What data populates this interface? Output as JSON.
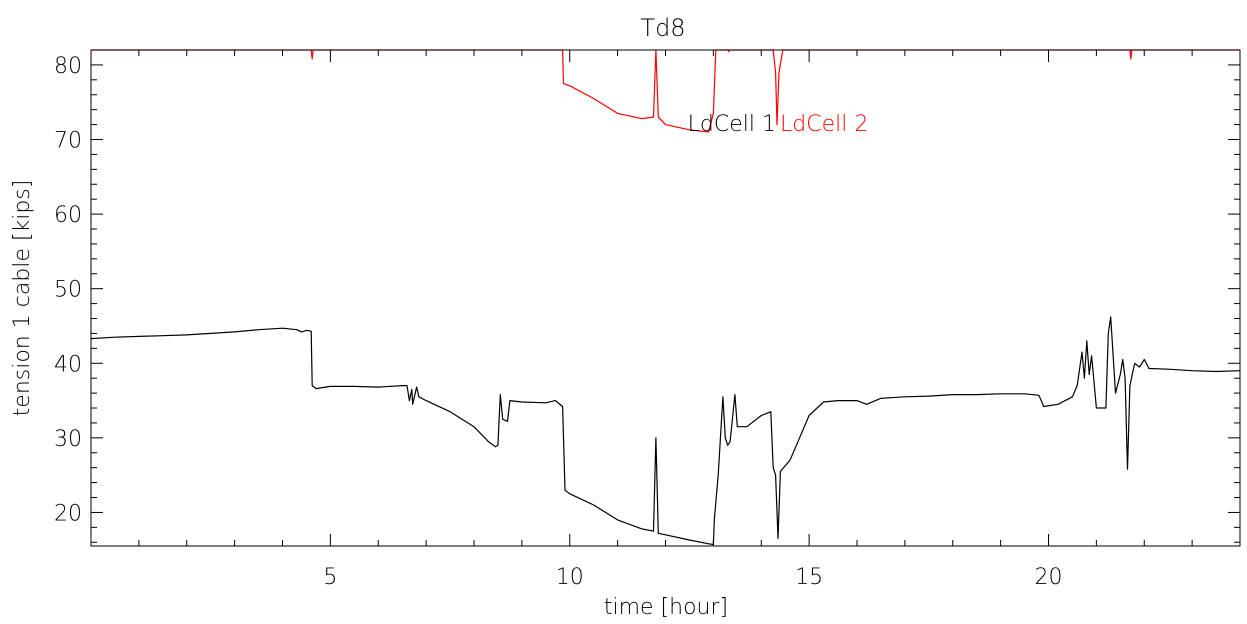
{
  "chart_data": {
    "type": "line",
    "title": "Td8",
    "xlabel": "time [hour]",
    "ylabel": "tension 1 cable [kips]",
    "xlim": [
      0,
      24
    ],
    "ylim": [
      15.5,
      82
    ],
    "x_ticks": [
      5,
      10,
      15,
      20
    ],
    "y_ticks": [
      20,
      30,
      40,
      50,
      60,
      70,
      80
    ],
    "x_tick_labels": [
      "5",
      "10",
      "15",
      "20"
    ],
    "y_tick_labels": [
      "20",
      "30",
      "40",
      "50",
      "60",
      "70",
      "80"
    ],
    "grid": false,
    "legend_placement": "top-center",
    "series": [
      {
        "name": "LdCell 1",
        "color": "#000000",
        "points": [
          [
            0.0,
            43.3
          ],
          [
            0.5,
            43.5
          ],
          [
            1.0,
            43.6
          ],
          [
            1.5,
            43.7
          ],
          [
            2.0,
            43.8
          ],
          [
            2.5,
            44.0
          ],
          [
            3.0,
            44.2
          ],
          [
            3.5,
            44.5
          ],
          [
            4.0,
            44.7
          ],
          [
            4.3,
            44.5
          ],
          [
            4.4,
            44.2
          ],
          [
            4.5,
            44.4
          ],
          [
            4.6,
            44.3
          ],
          [
            4.62,
            37.0
          ],
          [
            4.7,
            36.6
          ],
          [
            5.0,
            36.9
          ],
          [
            5.5,
            36.9
          ],
          [
            6.0,
            36.8
          ],
          [
            6.5,
            37.0
          ],
          [
            6.6,
            37.0
          ],
          [
            6.65,
            35.0
          ],
          [
            6.7,
            36.5
          ],
          [
            6.72,
            34.5
          ],
          [
            6.8,
            36.8
          ],
          [
            6.85,
            35.5
          ],
          [
            7.0,
            35.0
          ],
          [
            7.5,
            33.5
          ],
          [
            8.0,
            31.5
          ],
          [
            8.3,
            29.5
          ],
          [
            8.45,
            28.8
          ],
          [
            8.5,
            29.0
          ],
          [
            8.55,
            35.8
          ],
          [
            8.6,
            32.5
          ],
          [
            8.7,
            32.2
          ],
          [
            8.75,
            35.0
          ],
          [
            9.0,
            34.8
          ],
          [
            9.5,
            34.7
          ],
          [
            9.7,
            35.0
          ],
          [
            9.85,
            34.2
          ],
          [
            9.9,
            23.0
          ],
          [
            10.0,
            22.5
          ],
          [
            10.5,
            21.0
          ],
          [
            11.0,
            19.0
          ],
          [
            11.5,
            17.8
          ],
          [
            11.75,
            17.5
          ],
          [
            11.8,
            30.0
          ],
          [
            11.85,
            17.2
          ],
          [
            12.0,
            17.0
          ],
          [
            12.5,
            16.3
          ],
          [
            12.9,
            15.8
          ],
          [
            13.0,
            15.7
          ],
          [
            13.02,
            19.0
          ],
          [
            13.1,
            25.0
          ],
          [
            13.2,
            35.5
          ],
          [
            13.25,
            30.0
          ],
          [
            13.3,
            29.0
          ],
          [
            13.35,
            29.5
          ],
          [
            13.45,
            35.8
          ],
          [
            13.5,
            31.5
          ],
          [
            13.7,
            31.5
          ],
          [
            14.0,
            33.0
          ],
          [
            14.2,
            33.5
          ],
          [
            14.25,
            26.0
          ],
          [
            14.3,
            25.0
          ],
          [
            14.35,
            16.5
          ],
          [
            14.4,
            25.5
          ],
          [
            14.6,
            27.0
          ],
          [
            14.8,
            30.0
          ],
          [
            15.0,
            33.0
          ],
          [
            15.3,
            34.8
          ],
          [
            15.6,
            35.0
          ],
          [
            16.0,
            35.0
          ],
          [
            16.2,
            34.5
          ],
          [
            16.5,
            35.3
          ],
          [
            17.0,
            35.5
          ],
          [
            17.5,
            35.6
          ],
          [
            18.0,
            35.8
          ],
          [
            18.5,
            35.8
          ],
          [
            19.0,
            35.9
          ],
          [
            19.5,
            35.9
          ],
          [
            19.8,
            35.7
          ],
          [
            19.9,
            34.2
          ],
          [
            20.2,
            34.5
          ],
          [
            20.5,
            35.5
          ],
          [
            20.6,
            37.0
          ],
          [
            20.7,
            41.5
          ],
          [
            20.75,
            38.0
          ],
          [
            20.8,
            43.0
          ],
          [
            20.85,
            38.5
          ],
          [
            20.9,
            41.0
          ],
          [
            21.0,
            34.0
          ],
          [
            21.2,
            34.0
          ],
          [
            21.25,
            44.0
          ],
          [
            21.3,
            46.2
          ],
          [
            21.4,
            36.0
          ],
          [
            21.5,
            38.5
          ],
          [
            21.55,
            40.5
          ],
          [
            21.6,
            38.0
          ],
          [
            21.65,
            25.8
          ],
          [
            21.7,
            37.0
          ],
          [
            21.8,
            40.0
          ],
          [
            21.9,
            39.5
          ],
          [
            22.0,
            40.5
          ],
          [
            22.1,
            39.3
          ],
          [
            22.5,
            39.2
          ],
          [
            23.0,
            39.0
          ],
          [
            23.5,
            38.9
          ],
          [
            24.0,
            39.0
          ]
        ]
      },
      {
        "name": "LdCell 2",
        "color": "#ff0000",
        "points": [
          [
            0.0,
            82.0
          ],
          [
            4.6,
            82.0
          ],
          [
            4.62,
            80.8
          ],
          [
            4.64,
            82.0
          ],
          [
            9.85,
            82.0
          ],
          [
            9.87,
            77.5
          ],
          [
            10.0,
            77.2
          ],
          [
            10.5,
            75.5
          ],
          [
            11.0,
            73.5
          ],
          [
            11.5,
            72.8
          ],
          [
            11.75,
            73.0
          ],
          [
            11.8,
            82.0
          ],
          [
            11.85,
            73.0
          ],
          [
            12.0,
            72.0
          ],
          [
            12.5,
            71.3
          ],
          [
            12.9,
            71.0
          ],
          [
            13.0,
            73.5
          ],
          [
            13.05,
            82.0
          ],
          [
            13.3,
            82.0
          ],
          [
            13.32,
            81.8
          ],
          [
            13.34,
            82.0
          ],
          [
            14.25,
            82.0
          ],
          [
            14.3,
            79.0
          ],
          [
            14.33,
            72.0
          ],
          [
            14.37,
            79.0
          ],
          [
            14.45,
            82.0
          ],
          [
            21.7,
            82.0
          ],
          [
            21.72,
            80.8
          ],
          [
            21.74,
            82.0
          ],
          [
            24.0,
            82.0
          ]
        ]
      }
    ]
  }
}
